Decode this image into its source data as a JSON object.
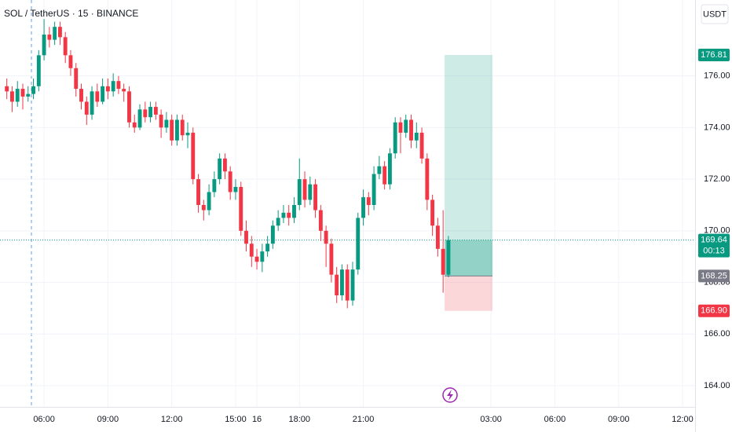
{
  "chart_data": {
    "type": "candlestick",
    "title": "SOL / TetherUS · 15 · BINANCE",
    "axis_unit": "USDT",
    "up_color": "#089981",
    "down_color": "#f23645",
    "grid": true,
    "x": [
      4.25,
      4.5,
      4.75,
      5,
      5.25,
      5.5,
      5.75,
      6,
      6.25,
      6.5,
      6.75,
      7,
      7.25,
      7.5,
      7.75,
      8,
      8.25,
      8.5,
      8.75,
      9,
      9.25,
      9.5,
      9.75,
      10,
      10.25,
      10.5,
      10.75,
      11,
      11.25,
      11.5,
      11.75,
      12,
      12.25,
      12.5,
      12.75,
      13,
      13.25,
      13.5,
      13.75,
      14,
      14.25,
      14.5,
      14.75,
      15,
      15.25,
      15.5,
      15.75,
      16,
      16.25,
      16.5,
      16.75,
      17,
      17.25,
      17.5,
      17.75,
      18,
      18.25,
      18.5,
      18.75,
      19,
      19.25,
      19.5,
      19.75,
      20,
      20.25,
      20.5,
      20.75,
      21,
      21.25,
      21.5,
      21.75,
      22,
      22.25,
      22.5,
      22.75,
      23,
      23.25,
      23.5,
      23.75,
      24,
      24.25,
      24.5,
      24.75,
      25
    ],
    "open": [
      175.6,
      175.4,
      175.0,
      175.5,
      175.2,
      175.3,
      175.6,
      176.8,
      177.6,
      177.4,
      177.9,
      177.5,
      176.8,
      176.3,
      175.5,
      175.0,
      174.5,
      175.4,
      175.0,
      175.6,
      175.4,
      175.8,
      175.5,
      175.4,
      174.2,
      174.0,
      174.7,
      174.4,
      174.8,
      174.5,
      174.0,
      174.3,
      173.5,
      174.3,
      173.7,
      173.8,
      172.0,
      171.0,
      170.8,
      171.5,
      172.0,
      172.8,
      172.3,
      171.5,
      171.7,
      170.0,
      169.5,
      169.0,
      168.8,
      169.2,
      169.5,
      170.2,
      170.5,
      170.7,
      170.5,
      171.0,
      172.0,
      171.2,
      171.8,
      170.8,
      170.0,
      169.5,
      168.3,
      167.5,
      168.5,
      167.3,
      168.5,
      170.5,
      171.3,
      171.0,
      172.2,
      172.5,
      171.8,
      173.0,
      174.2,
      173.8,
      174.3,
      173.5,
      173.8,
      172.8,
      171.2,
      170.2,
      169.3,
      168.3
    ],
    "high": [
      175.9,
      175.6,
      175.8,
      175.7,
      175.6,
      175.9,
      177.0,
      178.2,
      177.9,
      178.1,
      178.1,
      177.7,
      177.0,
      176.5,
      175.7,
      175.2,
      175.6,
      175.7,
      175.9,
      175.9,
      176.1,
      176.0,
      175.7,
      175.6,
      174.5,
      174.9,
      175.0,
      175.0,
      175.0,
      174.7,
      174.6,
      174.5,
      174.5,
      174.5,
      174.2,
      174.0,
      172.2,
      171.2,
      171.8,
      172.3,
      173.0,
      173.0,
      172.5,
      172.0,
      171.9,
      170.4,
      169.8,
      169.3,
      169.5,
      169.8,
      170.4,
      170.8,
      171.0,
      171.0,
      171.3,
      172.8,
      172.3,
      172.1,
      172.0,
      171.0,
      170.2,
      169.7,
      168.6,
      168.7,
      168.7,
      168.8,
      170.7,
      171.6,
      171.5,
      172.5,
      172.9,
      172.7,
      173.2,
      174.4,
      174.4,
      174.5,
      174.5,
      174.2,
      174.0,
      173.0,
      171.4,
      170.5,
      170.8,
      169.8
    ],
    "low": [
      175.1,
      174.6,
      174.8,
      174.7,
      175.0,
      175.1,
      175.4,
      176.6,
      177.1,
      177.2,
      177.2,
      176.5,
      176.0,
      175.2,
      174.7,
      174.1,
      174.3,
      174.8,
      174.9,
      175.1,
      175.2,
      175.3,
      175.0,
      174.0,
      173.8,
      173.9,
      174.2,
      174.2,
      174.3,
      173.6,
      173.8,
      173.3,
      173.3,
      173.5,
      173.2,
      171.8,
      170.7,
      170.4,
      170.6,
      171.3,
      171.8,
      172.0,
      171.2,
      171.2,
      169.8,
      169.2,
      168.6,
      168.5,
      168.4,
      169.0,
      169.3,
      170.0,
      170.3,
      170.2,
      170.3,
      170.8,
      170.9,
      171.0,
      170.5,
      169.6,
      168.6,
      168.0,
      167.2,
      167.3,
      167.0,
      167.1,
      168.3,
      170.2,
      170.6,
      170.8,
      172.0,
      171.6,
      171.6,
      172.8,
      173.0,
      173.6,
      173.2,
      173.2,
      172.6,
      170.8,
      169.8,
      169.0,
      167.6,
      168.2
    ],
    "close": [
      175.4,
      175.0,
      175.5,
      175.2,
      175.3,
      175.6,
      176.8,
      177.6,
      177.4,
      177.9,
      177.5,
      176.8,
      176.3,
      175.5,
      175.0,
      174.5,
      175.4,
      175.0,
      175.6,
      175.4,
      175.8,
      175.5,
      175.4,
      174.2,
      174.0,
      174.7,
      174.4,
      174.8,
      174.5,
      174.0,
      174.3,
      173.5,
      174.3,
      173.7,
      173.8,
      172.0,
      171.0,
      170.8,
      171.5,
      172.0,
      172.8,
      172.3,
      171.5,
      171.7,
      170.0,
      169.5,
      169.0,
      168.8,
      169.2,
      169.5,
      170.2,
      170.5,
      170.7,
      170.5,
      171.0,
      172.0,
      171.2,
      171.8,
      170.8,
      170.0,
      169.5,
      168.3,
      167.5,
      168.5,
      167.3,
      168.5,
      170.5,
      171.3,
      171.0,
      172.2,
      172.5,
      171.8,
      173.0,
      174.2,
      173.8,
      174.3,
      173.5,
      173.8,
      172.8,
      171.2,
      170.2,
      169.3,
      168.3,
      169.64
    ],
    "xlim": [
      3.93,
      36.59
    ],
    "ylim": [
      163.18,
      178.94
    ],
    "xticks": [
      {
        "value": 6,
        "label": "06:00"
      },
      {
        "value": 9,
        "label": "09:00"
      },
      {
        "value": 12,
        "label": "12:00"
      },
      {
        "value": 15,
        "label": "15:00"
      },
      {
        "value": 18,
        "label": "18:00"
      },
      {
        "value": 21,
        "label": "21:00"
      },
      16,
      {
        "value": 27,
        "label": "03:00"
      },
      {
        "value": 30,
        "label": "06:00"
      },
      {
        "value": 33,
        "label": "09:00"
      },
      {
        "value": 36,
        "label": "12:00"
      }
    ],
    "yticks": [
      {
        "value": 164,
        "label": "164.00"
      },
      {
        "value": 166,
        "label": "166.00"
      },
      {
        "value": 168,
        "label": "168.00"
      },
      {
        "value": 170,
        "label": "170.00"
      },
      {
        "value": 172,
        "label": "172.00"
      },
      {
        "value": 174,
        "label": "174.00"
      },
      {
        "value": 176,
        "label": "176.00"
      }
    ],
    "last_price": 169.64,
    "countdown": "00:13",
    "position": {
      "x_start": 24.82,
      "x_end": 27.07,
      "target": 176.81,
      "entry": 168.25,
      "stop": {
        "value": 166.9,
        "label": "166.90"
      }
    }
  }
}
